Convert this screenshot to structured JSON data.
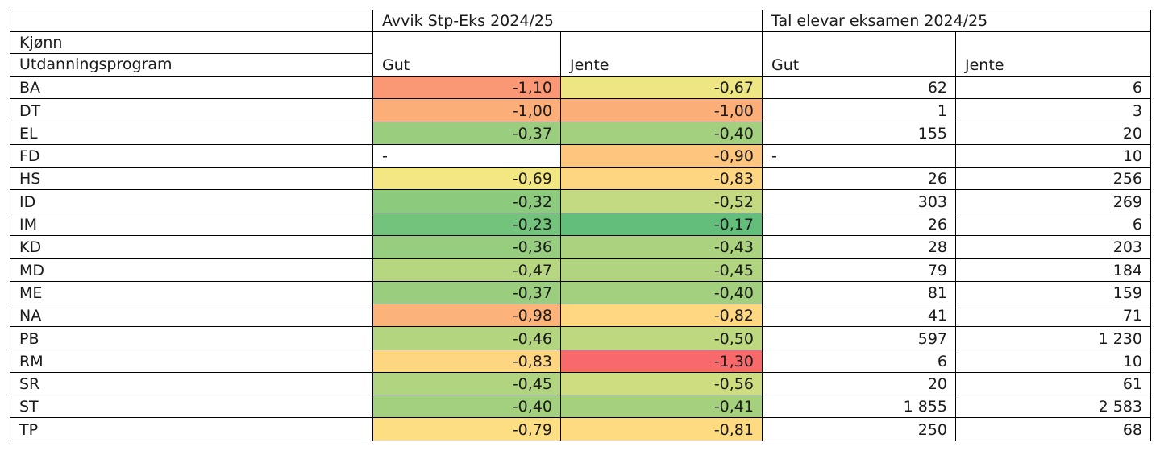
{
  "chart_data": {
    "type": "table",
    "row_header_title": "Kjønn",
    "row_header_subtitle": "Utdanningsprogram",
    "column_groups": [
      {
        "title": "Avvik Stp-Eks 2024/25",
        "columns": [
          "Gut",
          "Jente"
        ]
      },
      {
        "title": "Tal elevar eksamen 2024/25",
        "columns": [
          "Gut",
          "Jente"
        ]
      }
    ],
    "rows": [
      {
        "program": "BA",
        "avvik": [
          "-1,10",
          "-0,67"
        ],
        "avvik_values": [
          -1.1,
          -0.67
        ],
        "tal": [
          "62",
          "6"
        ]
      },
      {
        "program": "DT",
        "avvik": [
          "-1,00",
          "-1,00"
        ],
        "avvik_values": [
          -1.0,
          -1.0
        ],
        "tal": [
          "1",
          "3"
        ]
      },
      {
        "program": "EL",
        "avvik": [
          "-0,37",
          "-0,40"
        ],
        "avvik_values": [
          -0.37,
          -0.4
        ],
        "tal": [
          "155",
          "20"
        ]
      },
      {
        "program": "FD",
        "avvik": [
          "-",
          "-0,90"
        ],
        "avvik_values": [
          null,
          -0.9
        ],
        "tal": [
          "-",
          "10"
        ]
      },
      {
        "program": "HS",
        "avvik": [
          "-0,69",
          "-0,83"
        ],
        "avvik_values": [
          -0.69,
          -0.83
        ],
        "tal": [
          "26",
          "256"
        ]
      },
      {
        "program": "ID",
        "avvik": [
          "-0,32",
          "-0,52"
        ],
        "avvik_values": [
          -0.32,
          -0.52
        ],
        "tal": [
          "303",
          "269"
        ]
      },
      {
        "program": "IM",
        "avvik": [
          "-0,23",
          "-0,17"
        ],
        "avvik_values": [
          -0.23,
          -0.17
        ],
        "tal": [
          "26",
          "6"
        ]
      },
      {
        "program": "KD",
        "avvik": [
          "-0,36",
          "-0,43"
        ],
        "avvik_values": [
          -0.36,
          -0.43
        ],
        "tal": [
          "28",
          "203"
        ]
      },
      {
        "program": "MD",
        "avvik": [
          "-0,47",
          "-0,45"
        ],
        "avvik_values": [
          -0.47,
          -0.45
        ],
        "tal": [
          "79",
          "184"
        ]
      },
      {
        "program": "ME",
        "avvik": [
          "-0,37",
          "-0,40"
        ],
        "avvik_values": [
          -0.37,
          -0.4
        ],
        "tal": [
          "81",
          "159"
        ]
      },
      {
        "program": "NA",
        "avvik": [
          "-0,98",
          "-0,82"
        ],
        "avvik_values": [
          -0.98,
          -0.82
        ],
        "tal": [
          "41",
          "71"
        ]
      },
      {
        "program": "PB",
        "avvik": [
          "-0,46",
          "-0,50"
        ],
        "avvik_values": [
          -0.46,
          -0.5
        ],
        "tal": [
          "597",
          "1 230"
        ]
      },
      {
        "program": "RM",
        "avvik": [
          "-0,83",
          "-1,30"
        ],
        "avvik_values": [
          -0.83,
          -1.3
        ],
        "tal": [
          "6",
          "10"
        ]
      },
      {
        "program": "SR",
        "avvik": [
          "-0,45",
          "-0,56"
        ],
        "avvik_values": [
          -0.45,
          -0.56
        ],
        "tal": [
          "20",
          "61"
        ]
      },
      {
        "program": "ST",
        "avvik": [
          "-0,40",
          "-0,41"
        ],
        "avvik_values": [
          -0.4,
          -0.41
        ],
        "tal": [
          "1 855",
          "2 583"
        ]
      },
      {
        "program": "TP",
        "avvik": [
          "-0,79",
          "-0,81"
        ],
        "avvik_values": [
          -0.79,
          -0.81
        ],
        "tal": [
          "250",
          "68"
        ]
      }
    ],
    "color_scale": {
      "best": "#63be7b",
      "mid": "#ffeb84",
      "worst": "#f8696b",
      "empty": "#ffffff"
    }
  }
}
